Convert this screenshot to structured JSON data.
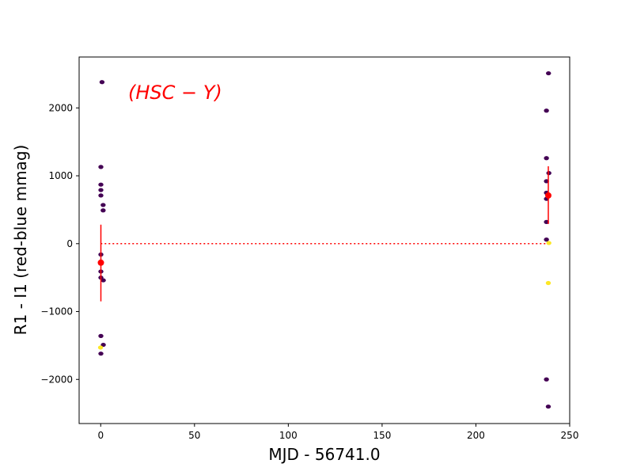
{
  "chart_data": {
    "type": "scatter",
    "xlabel": "MJD - 56741.0",
    "ylabel": "R1 - I1 (red-blue mmag)",
    "annotation": "(HSC − Y)",
    "xlim": [
      -11.5,
      250
    ],
    "ylim": [
      -2650,
      2750
    ],
    "x_ticks": [
      0,
      50,
      100,
      150,
      200,
      250
    ],
    "y_ticks": [
      -2000,
      -1000,
      0,
      1000,
      2000
    ],
    "y_tick_labels": [
      "−2000",
      "−1000",
      "0",
      "1000",
      "2000"
    ],
    "grid": false,
    "colors": {
      "dark_points": "#440154",
      "yellow_points": "#fde725",
      "mean_marker": "#ff0000",
      "zero_line": "#ff0000",
      "annotation": "#ff0000"
    },
    "series": [
      {
        "points": [
          [
            0.7,
            2380
          ],
          [
            0.1,
            1130
          ],
          [
            0.1,
            870
          ],
          [
            0.1,
            790
          ],
          [
            0.1,
            710
          ],
          [
            1.3,
            570
          ],
          [
            1.3,
            490
          ],
          [
            0.1,
            -160
          ],
          [
            0.1,
            -410
          ],
          [
            0.1,
            -500
          ],
          [
            1.4,
            -540
          ],
          [
            0.1,
            -1360
          ],
          [
            1.4,
            -1490
          ],
          [
            0.1,
            -1620
          ],
          [
            238.7,
            2510
          ],
          [
            237.6,
            1960
          ],
          [
            237.6,
            1260
          ],
          [
            238.9,
            1040
          ],
          [
            237.6,
            920
          ],
          [
            237.6,
            750
          ],
          [
            237.6,
            660
          ],
          [
            237.6,
            320
          ],
          [
            237.6,
            60
          ],
          [
            238.6,
            -2400
          ],
          [
            237.6,
            -2000
          ]
        ]
      },
      {
        "points": [
          [
            -0.1,
            -1530
          ],
          [
            238.6,
            -580
          ],
          [
            238.9,
            10
          ]
        ]
      }
    ],
    "means": [
      {
        "x": 0.1,
        "y": -280,
        "err_low": -850,
        "err_high": 280
      },
      {
        "x": 238.6,
        "y": 710,
        "err_low": 290,
        "err_high": 1140
      }
    ],
    "reference_line": {
      "y": 0,
      "x_from": 0,
      "x_to": 239
    }
  }
}
